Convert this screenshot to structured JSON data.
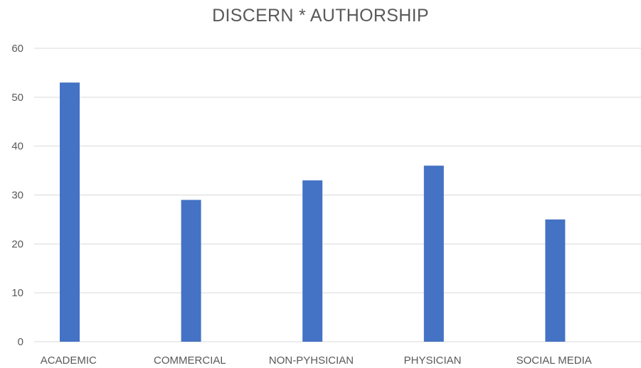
{
  "chart_data": {
    "type": "bar",
    "title": "DISCERN * AUTHORSHIP",
    "xlabel": "",
    "ylabel": "",
    "categories": [
      "ACADEMIC",
      "COMMERCIAL",
      "NON-PYHSICIAN",
      "PHYSICIAN",
      "SOCIAL MEDIA"
    ],
    "series": [
      {
        "values": [
          53,
          29,
          33,
          36,
          25
        ]
      }
    ],
    "ylim": [
      0,
      60
    ],
    "yticks": [
      0,
      10,
      20,
      30,
      40,
      50,
      60
    ],
    "grid": true,
    "legend": "none",
    "colors": {
      "bar": "#4472C4",
      "grid": "#D9D9D9",
      "text": "#595959"
    }
  }
}
